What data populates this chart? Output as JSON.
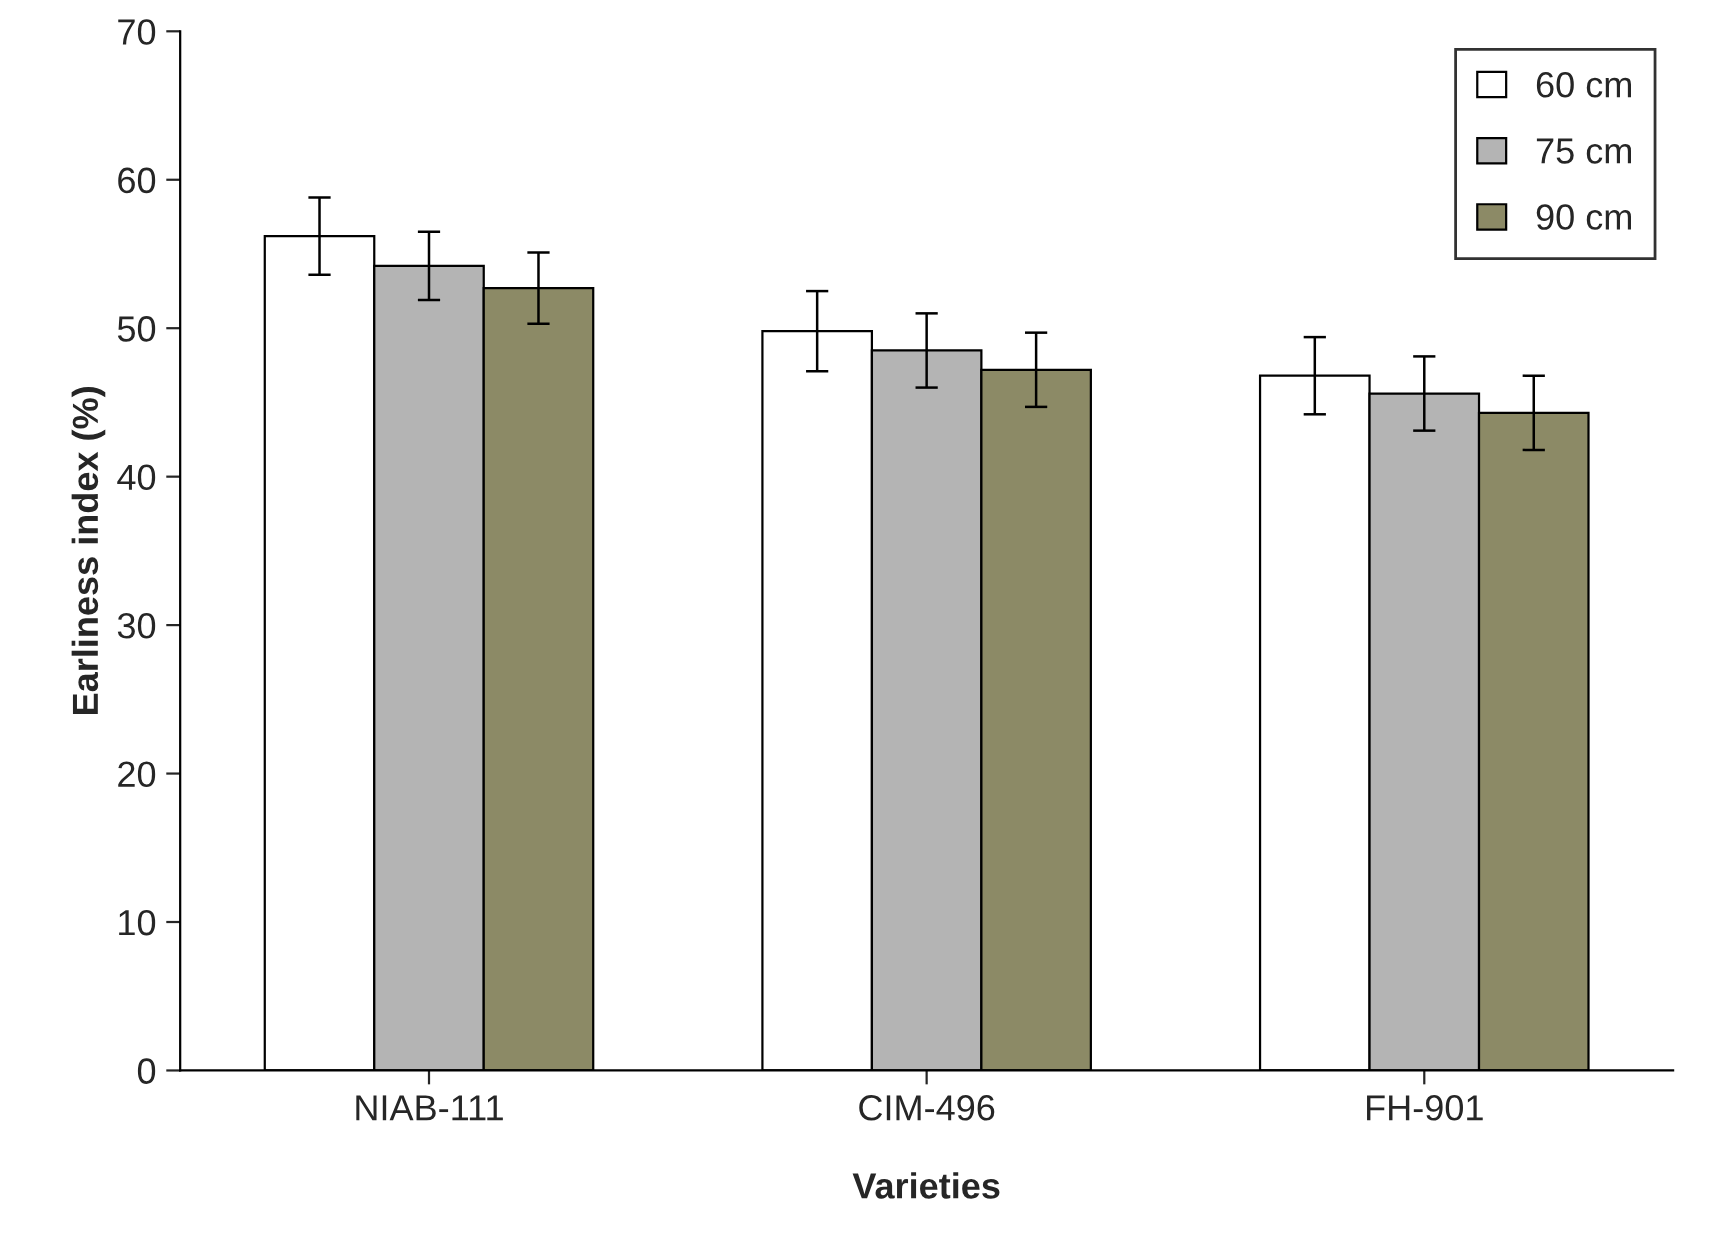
{
  "chart_data": {
    "type": "bar",
    "xlabel": "Varieties",
    "ylabel": "Earliness index (%)",
    "categories": [
      "NIAB-111",
      "CIM-496",
      "FH-901"
    ],
    "series": [
      {
        "name": "60 cm",
        "color": "#ffffff",
        "values": [
          56.2,
          49.8,
          46.8
        ],
        "errors": [
          2.6,
          2.7,
          2.6
        ]
      },
      {
        "name": "75 cm",
        "color": "#b4b4b4",
        "values": [
          54.2,
          48.5,
          45.6
        ],
        "errors": [
          2.3,
          2.5,
          2.5
        ]
      },
      {
        "name": "90 cm",
        "color": "#8c8a66",
        "values": [
          52.7,
          47.2,
          44.3
        ],
        "errors": [
          2.4,
          2.5,
          2.5
        ]
      }
    ],
    "ylim": [
      0,
      70
    ],
    "yticks": [
      0,
      10,
      20,
      30,
      40,
      50,
      60,
      70
    ],
    "grid": false,
    "legend": "top right"
  }
}
